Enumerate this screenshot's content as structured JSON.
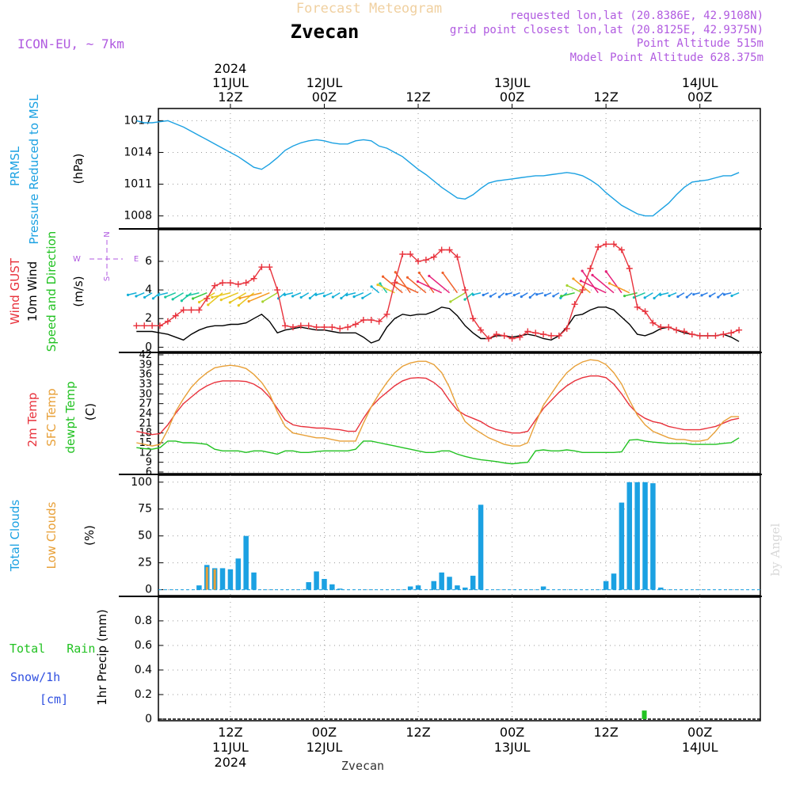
{
  "header": {
    "title_faint": "Forecast Meteogram",
    "location": "Zvecan",
    "model": "ICON-EU, ~ 7km",
    "requested": "requested lon,lat (20.8386E, 42.9108N)",
    "gridpoint": "grid point closest lon,lat (20.8125E, 42.9375N)",
    "altitude": "Point Altitude 515m",
    "model_altitude": "Model Point Altitude 628.375m",
    "footer": "Zvecan",
    "watermark": "by Angel"
  },
  "time_axis": {
    "top_labels": [
      {
        "h": 12,
        "lines": [
          "2024",
          "11JUL",
          "12Z"
        ]
      },
      {
        "h": 24,
        "lines": [
          "12JUL",
          "00Z"
        ]
      },
      {
        "h": 36,
        "lines": [
          "12Z"
        ]
      },
      {
        "h": 48,
        "lines": [
          "13JUL",
          "00Z"
        ]
      },
      {
        "h": 60,
        "lines": [
          "12Z"
        ]
      },
      {
        "h": 72,
        "lines": [
          "14JUL",
          "00Z"
        ]
      }
    ],
    "bottom_labels": [
      {
        "h": 12,
        "lines": [
          "12Z",
          "11JUL",
          "2024"
        ]
      },
      {
        "h": 24,
        "lines": [
          "00Z",
          "12JUL"
        ]
      },
      {
        "h": 36,
        "lines": [
          "12Z"
        ]
      },
      {
        "h": 48,
        "lines": [
          "00Z",
          "13JUL"
        ]
      },
      {
        "h": 60,
        "lines": [
          "12Z"
        ]
      },
      {
        "h": 72,
        "lines": [
          "00Z",
          "14JUL"
        ]
      }
    ]
  },
  "panels": {
    "pressure": {
      "label1": "PRMSL",
      "label2": "Pressure Reduced to MSL",
      "unit": "(hPa)",
      "color": "#1ba1e2"
    },
    "wind": {
      "label_gust": "Wind GUST",
      "label_wind": "10m Wind",
      "label_dir": "Speed and Direction",
      "unit": "(m/s)",
      "compass": [
        "N",
        "S",
        "W",
        "E"
      ],
      "gust_color": "#e8323c"
    },
    "temp": {
      "label_2m": "2m Temp",
      "label_sfc": "SFC Temp",
      "label_dew": "dewpt Temp",
      "unit": "(C)"
    },
    "clouds": {
      "label_total": "Total Clouds",
      "label_low": "Low Clouds",
      "unit": "(%)"
    },
    "precip": {
      "label_rain": "Total   Rain",
      "label_snow": "Snow/1h",
      "label_snow_unit": "[cm]",
      "unit": "1hr Precip (mm)"
    }
  },
  "chart_data": [
    {
      "type": "line",
      "ylabel": "(hPa)",
      "ylim": [
        1007,
        1018
      ],
      "yticks": [
        1008,
        1011,
        1014,
        1017
      ],
      "x_hours": [
        0,
        1,
        2,
        3,
        4,
        5,
        6,
        7,
        8,
        9,
        10,
        11,
        12,
        13,
        14,
        15,
        16,
        17,
        18,
        19,
        20,
        21,
        22,
        23,
        24,
        25,
        26,
        27,
        28,
        29,
        30,
        31,
        32,
        33,
        34,
        35,
        36,
        37,
        38,
        39,
        40,
        41,
        42,
        43,
        44,
        45,
        46,
        47,
        48,
        49,
        50,
        51,
        52,
        53,
        54,
        55,
        56,
        57,
        58,
        59,
        60,
        61,
        62,
        63,
        64,
        65,
        66,
        67,
        68,
        69,
        70,
        71,
        72,
        73,
        74,
        75,
        76,
        77
      ],
      "series": [
        {
          "name": "PRMSL",
          "color": "#1ba1e2",
          "values": [
            1017.0,
            1016.8,
            1016.8,
            1016.9,
            1017.0,
            1016.7,
            1016.4,
            1016.0,
            1015.6,
            1015.2,
            1014.8,
            1014.4,
            1014.0,
            1013.6,
            1013.1,
            1012.6,
            1012.4,
            1012.9,
            1013.5,
            1014.2,
            1014.6,
            1014.9,
            1015.1,
            1015.2,
            1015.1,
            1014.9,
            1014.8,
            1014.8,
            1015.1,
            1015.2,
            1015.1,
            1014.6,
            1014.4,
            1014.0,
            1013.6,
            1013.0,
            1012.4,
            1011.9,
            1011.3,
            1010.7,
            1010.2,
            1009.7,
            1009.6,
            1010.0,
            1010.6,
            1011.1,
            1011.3,
            1011.4,
            1011.5,
            1011.6,
            1011.7,
            1011.8,
            1011.8,
            1011.9,
            1012.0,
            1012.1,
            1012.0,
            1011.8,
            1011.4,
            1010.9,
            1010.2,
            1009.6,
            1009.0,
            1008.6,
            1008.2,
            1008.0,
            1008.0,
            1008.6,
            1009.2,
            1010.0,
            1010.7,
            1011.2,
            1011.3,
            1011.4,
            1011.6,
            1011.8,
            1011.8,
            1012.1
          ]
        }
      ]
    },
    {
      "type": "line",
      "ylabel": "(m/s)",
      "ylim": [
        -0.2,
        8.1
      ],
      "yticks": [
        0,
        2,
        4,
        6
      ],
      "x_hours": [
        0,
        1,
        2,
        3,
        4,
        5,
        6,
        7,
        8,
        9,
        10,
        11,
        12,
        13,
        14,
        15,
        16,
        17,
        18,
        19,
        20,
        21,
        22,
        23,
        24,
        25,
        26,
        27,
        28,
        29,
        30,
        31,
        32,
        33,
        34,
        35,
        36,
        37,
        38,
        39,
        40,
        41,
        42,
        43,
        44,
        45,
        46,
        47,
        48,
        49,
        50,
        51,
        52,
        53,
        54,
        55,
        56,
        57,
        58,
        59,
        60,
        61,
        62,
        63,
        64,
        65,
        66,
        67,
        68,
        69,
        70,
        71,
        72,
        73,
        74,
        75,
        76,
        77
      ],
      "series": [
        {
          "name": "Wind GUST",
          "color": "#e8323c",
          "marker": "+",
          "values": [
            1.5,
            1.5,
            1.5,
            1.5,
            1.8,
            2.2,
            2.6,
            2.6,
            2.6,
            3.4,
            4.3,
            4.5,
            4.5,
            4.4,
            4.5,
            4.8,
            5.6,
            5.6,
            4.0,
            1.5,
            1.4,
            1.5,
            1.5,
            1.4,
            1.4,
            1.4,
            1.3,
            1.4,
            1.6,
            1.9,
            1.9,
            1.8,
            2.3,
            4.5,
            6.5,
            6.5,
            6.0,
            6.1,
            6.3,
            6.8,
            6.8,
            6.3,
            4.0,
            2.0,
            1.2,
            0.6,
            0.9,
            0.8,
            0.6,
            0.7,
            1.1,
            1.0,
            0.9,
            0.8,
            0.8,
            1.3,
            3.0,
            4.0,
            5.5,
            7.0,
            7.2,
            7.2,
            6.8,
            5.5,
            2.8,
            2.5,
            1.7,
            1.4,
            1.4,
            1.2,
            1.1,
            0.9,
            0.8,
            0.8,
            0.8,
            0.9,
            1.0,
            1.2
          ]
        },
        {
          "name": "10m Wind",
          "color": "#000000",
          "values": [
            1.1,
            1.1,
            1.1,
            1.0,
            0.9,
            0.7,
            0.5,
            0.9,
            1.2,
            1.4,
            1.5,
            1.5,
            1.6,
            1.6,
            1.7,
            2.0,
            2.3,
            1.8,
            1.0,
            1.2,
            1.3,
            1.4,
            1.3,
            1.2,
            1.2,
            1.1,
            1.0,
            1.0,
            1.0,
            0.7,
            0.3,
            0.5,
            1.4,
            2.0,
            2.3,
            2.2,
            2.3,
            2.3,
            2.5,
            2.8,
            2.7,
            2.2,
            1.5,
            1.0,
            0.6,
            0.6,
            0.8,
            0.8,
            0.7,
            0.8,
            0.9,
            0.8,
            0.6,
            0.5,
            0.8,
            1.4,
            2.2,
            2.3,
            2.6,
            2.8,
            2.8,
            2.6,
            2.1,
            1.6,
            0.9,
            0.8,
            1.0,
            1.3,
            1.4,
            1.2,
            1.0,
            0.9,
            0.8,
            0.8,
            0.8,
            0.9,
            0.7,
            0.4
          ]
        }
      ]
    },
    {
      "type": "line",
      "ylabel": "(C)",
      "ylim": [
        6,
        42
      ],
      "yticks": [
        6,
        9,
        12,
        15,
        18,
        21,
        24,
        27,
        30,
        33,
        36,
        39,
        42
      ],
      "x_hours": [
        0,
        1,
        2,
        3,
        4,
        5,
        6,
        7,
        8,
        9,
        10,
        11,
        12,
        13,
        14,
        15,
        16,
        17,
        18,
        19,
        20,
        21,
        22,
        23,
        24,
        25,
        26,
        27,
        28,
        29,
        30,
        31,
        32,
        33,
        34,
        35,
        36,
        37,
        38,
        39,
        40,
        41,
        42,
        43,
        44,
        45,
        46,
        47,
        48,
        49,
        50,
        51,
        52,
        53,
        54,
        55,
        56,
        57,
        58,
        59,
        60,
        61,
        62,
        63,
        64,
        65,
        66,
        67,
        68,
        69,
        70,
        71,
        72,
        73,
        74,
        75,
        76,
        77
      ],
      "series": [
        {
          "name": "2m Temp",
          "color": "#e8323c",
          "values": [
            18.5,
            18.0,
            17.5,
            17.8,
            20.5,
            24.0,
            27.0,
            29.0,
            31.0,
            32.5,
            33.5,
            34.0,
            34.0,
            34.0,
            33.8,
            33.0,
            31.5,
            29.0,
            25.5,
            22.0,
            20.5,
            20.0,
            19.8,
            19.5,
            19.5,
            19.2,
            19.0,
            18.5,
            18.5,
            22.5,
            26.0,
            28.5,
            30.5,
            32.5,
            34.0,
            34.8,
            35.0,
            34.8,
            33.5,
            31.5,
            28.0,
            25.0,
            23.5,
            22.5,
            21.5,
            20.0,
            19.0,
            18.5,
            18.0,
            18.0,
            18.5,
            22.0,
            25.5,
            28.0,
            30.5,
            32.5,
            34.0,
            35.0,
            35.5,
            35.5,
            35.0,
            33.0,
            30.0,
            26.5,
            24.0,
            22.5,
            21.5,
            21.0,
            20.0,
            19.5,
            19.0,
            19.0,
            19.0,
            19.5,
            20.0,
            21.0,
            22.0,
            22.5
          ]
        },
        {
          "name": "SFC Temp",
          "color": "#e8a038",
          "values": [
            15.0,
            14.5,
            14.0,
            14.5,
            19.0,
            24.5,
            28.5,
            32.0,
            34.5,
            36.5,
            38.0,
            38.5,
            38.8,
            38.5,
            37.8,
            36.0,
            33.5,
            30.0,
            24.5,
            20.0,
            18.0,
            17.5,
            17.0,
            16.5,
            16.5,
            16.0,
            15.5,
            15.5,
            15.5,
            21.0,
            26.0,
            30.0,
            33.5,
            36.5,
            38.5,
            39.5,
            40.0,
            40.0,
            39.0,
            36.5,
            32.0,
            26.0,
            21.5,
            19.5,
            18.0,
            16.5,
            15.5,
            14.5,
            14.0,
            14.0,
            15.0,
            21.0,
            26.5,
            30.0,
            33.5,
            36.5,
            38.5,
            39.8,
            40.5,
            40.2,
            39.0,
            36.5,
            33.0,
            28.0,
            23.5,
            20.5,
            18.5,
            17.5,
            16.5,
            16.0,
            16.0,
            15.5,
            15.5,
            16.0,
            18.5,
            21.5,
            23.0,
            23.0
          ]
        },
        {
          "name": "dewpt Temp",
          "color": "#22c222",
          "values": [
            13.5,
            13.2,
            13.0,
            13.5,
            15.5,
            15.5,
            15.0,
            15.0,
            14.8,
            14.5,
            13.0,
            12.5,
            12.5,
            12.5,
            12.0,
            12.5,
            12.5,
            12.0,
            11.5,
            12.5,
            12.5,
            12.0,
            12.0,
            12.3,
            12.5,
            12.5,
            12.5,
            12.5,
            13.0,
            15.5,
            15.5,
            15.0,
            14.5,
            14.0,
            13.5,
            13.0,
            12.5,
            12.0,
            12.0,
            12.5,
            12.5,
            11.5,
            10.8,
            10.2,
            9.8,
            9.5,
            9.2,
            8.8,
            8.5,
            8.8,
            9.0,
            12.5,
            12.8,
            12.5,
            12.5,
            12.8,
            12.5,
            12.0,
            12.0,
            12.0,
            12.0,
            12.0,
            12.2,
            15.8,
            16.0,
            15.5,
            15.2,
            15.0,
            14.8,
            14.8,
            14.8,
            14.5,
            14.5,
            14.5,
            14.5,
            14.8,
            15.0,
            16.5
          ]
        }
      ]
    },
    {
      "type": "bar",
      "ylabel": "(%)",
      "ylim": [
        -4,
        105
      ],
      "yticks": [
        0,
        25,
        50,
        75,
        100
      ],
      "x_hours": [
        0,
        1,
        2,
        3,
        4,
        5,
        6,
        7,
        8,
        9,
        10,
        11,
        12,
        13,
        14,
        15,
        16,
        17,
        18,
        19,
        20,
        21,
        22,
        23,
        24,
        25,
        26,
        27,
        28,
        29,
        30,
        31,
        32,
        33,
        34,
        35,
        36,
        37,
        38,
        39,
        40,
        41,
        42,
        43,
        44,
        45,
        46,
        47,
        48,
        49,
        50,
        51,
        52,
        53,
        54,
        55,
        56,
        57,
        58,
        59,
        60,
        61,
        62,
        63,
        64,
        65,
        66,
        67,
        68,
        69,
        70,
        71,
        72,
        73,
        74,
        75,
        76,
        77
      ],
      "series": [
        {
          "name": "Total Clouds",
          "color": "#1ba1e2",
          "values": [
            0,
            0,
            0,
            0,
            0,
            0,
            0,
            0,
            4,
            23,
            20,
            20,
            19,
            29,
            50,
            16,
            0,
            0,
            0,
            0,
            0,
            0,
            7,
            17,
            10,
            5,
            1,
            0,
            0,
            0,
            0,
            0,
            0,
            0,
            0,
            3,
            4,
            0,
            8,
            16,
            12,
            4,
            2,
            13,
            79,
            0,
            0,
            0,
            0,
            0,
            0,
            0,
            3,
            0,
            0,
            0,
            0,
            0,
            0,
            0,
            8,
            15,
            81,
            100,
            100,
            100,
            99,
            2,
            0,
            0,
            0,
            0,
            0,
            0,
            0,
            0,
            0,
            0
          ]
        },
        {
          "name": "Low Clouds",
          "color": "#e8a038",
          "values": [
            0,
            0,
            0,
            0,
            0,
            0,
            0,
            0,
            0,
            21,
            19,
            0,
            0,
            0,
            0,
            0,
            0,
            0,
            0,
            0,
            0,
            0,
            0,
            0,
            0,
            0,
            0,
            0,
            0,
            0,
            0,
            0,
            0,
            0,
            0,
            0,
            0,
            0,
            0,
            0,
            0,
            0,
            0,
            0,
            0,
            0,
            0,
            0,
            0,
            0,
            0,
            0,
            0,
            0,
            0,
            0,
            0,
            0,
            0,
            0,
            0,
            0,
            0,
            0,
            0,
            0,
            0,
            0,
            0,
            0,
            0,
            0,
            0,
            0,
            0,
            0,
            0,
            0
          ]
        }
      ]
    },
    {
      "type": "bar",
      "ylabel": "1hr Precip (mm)",
      "ylim": [
        0,
        0.98
      ],
      "yticks": [
        0,
        0.2,
        0.4,
        0.6,
        0.8
      ],
      "series": [
        {
          "name": "Total Rain",
          "color": "#22c222",
          "points": [
            {
              "h": 64.9,
              "v": 0.07
            }
          ]
        }
      ]
    }
  ]
}
